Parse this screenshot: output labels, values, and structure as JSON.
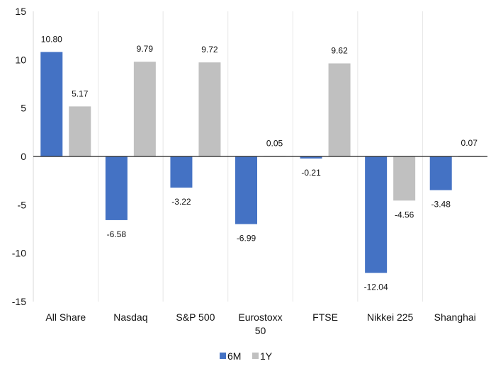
{
  "chart_data": {
    "type": "bar",
    "title": "",
    "xlabel": "",
    "ylabel": "",
    "ylim": [
      -15,
      15
    ],
    "y_ticks": [
      15,
      10,
      5,
      0,
      -5,
      -10,
      -15
    ],
    "categories": [
      [
        "All Share"
      ],
      [
        "Nasdaq"
      ],
      [
        "S&P 500"
      ],
      [
        "Eurostoxx",
        "50"
      ],
      [
        "FTSE"
      ],
      [
        "Nikkei 225"
      ],
      [
        "Shanghai"
      ]
    ],
    "series": [
      {
        "name": "6M",
        "color": "#4472c4",
        "values": [
          10.8,
          -6.58,
          -3.22,
          -6.99,
          -0.21,
          -12.04,
          -3.48
        ],
        "labels": [
          "10.80",
          "-6.58",
          "-3.22",
          "-6.99",
          "-0.21",
          "-12.04",
          "-3.48"
        ]
      },
      {
        "name": "1Y",
        "color": "#c0c0c0",
        "values": [
          5.17,
          9.79,
          9.72,
          0.05,
          9.62,
          -4.56,
          0.07
        ],
        "labels": [
          "5.17",
          "9.79",
          "9.72",
          "0.05",
          "9.62",
          "-4.56",
          "0.07"
        ]
      }
    ],
    "grid": "vertical-separators",
    "legend_position": "bottom"
  }
}
